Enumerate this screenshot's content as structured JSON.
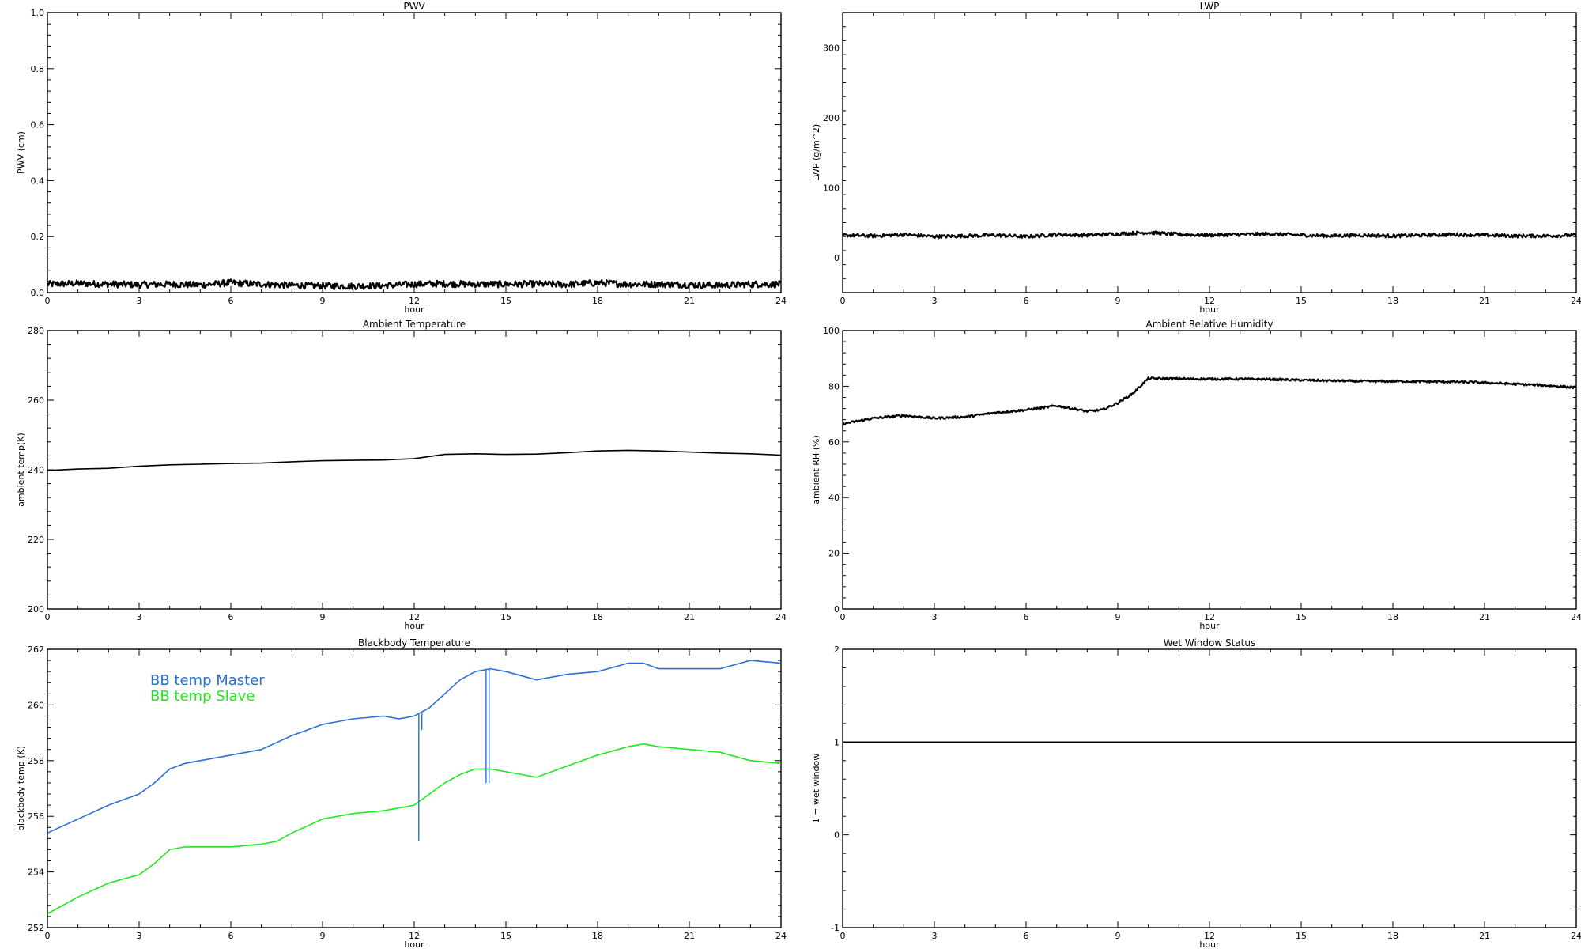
{
  "chart_data": [
    {
      "type": "line",
      "title": "PWV",
      "xlabel": "hour",
      "ylabel": "PWV (cm)",
      "xlim": [
        0,
        24
      ],
      "ylim": [
        0,
        1.0
      ],
      "xticks": [
        0,
        3,
        6,
        9,
        12,
        15,
        18,
        21,
        24
      ],
      "yticks": [
        0,
        0.2,
        0.4,
        0.6,
        0.8,
        1.0
      ],
      "ytick_labels": [
        "0.0",
        "0.2",
        "0.4",
        "0.6",
        "0.8",
        "1.0"
      ],
      "grid": false,
      "legend": [],
      "series": [
        {
          "color": "#000000",
          "noisy": true,
          "noise": 0.012,
          "x": [
            0,
            1,
            2,
            3,
            4,
            5,
            6,
            7,
            8,
            9,
            10,
            11,
            12,
            13,
            14,
            15,
            16,
            17,
            18,
            19,
            20,
            21,
            22,
            23,
            24
          ],
          "y": [
            0.03,
            0.033,
            0.03,
            0.028,
            0.03,
            0.027,
            0.035,
            0.03,
            0.026,
            0.024,
            0.023,
            0.025,
            0.03,
            0.032,
            0.03,
            0.03,
            0.031,
            0.029,
            0.035,
            0.03,
            0.03,
            0.028,
            0.026,
            0.03,
            0.03
          ]
        }
      ]
    },
    {
      "type": "line",
      "title": "LWP",
      "xlabel": "hour",
      "ylabel": "LWP (g/m^2)",
      "xlim": [
        0,
        24
      ],
      "ylim": [
        -50,
        350
      ],
      "xticks": [
        0,
        3,
        6,
        9,
        12,
        15,
        18,
        21,
        24
      ],
      "yticks": [
        0,
        100,
        200,
        300
      ],
      "ytick_labels": [
        "0",
        "100",
        "200",
        "300"
      ],
      "grid": false,
      "legend": [],
      "series": [
        {
          "color": "#000000",
          "noisy": true,
          "noise": 2.5,
          "x": [
            0,
            1,
            2,
            3,
            4,
            5,
            6,
            7,
            8,
            9,
            10,
            11,
            12,
            13,
            14,
            15,
            16,
            17,
            18,
            19,
            20,
            21,
            22,
            23,
            24
          ],
          "y": [
            32,
            31,
            33,
            30,
            31,
            32,
            30,
            33,
            32,
            34,
            36,
            33,
            32,
            33,
            34,
            32,
            31,
            32,
            31,
            32,
            33,
            32,
            31,
            31,
            32
          ]
        }
      ]
    },
    {
      "type": "line",
      "title": "Ambient Temperature",
      "xlabel": "hour",
      "ylabel": "ambient temp(K)",
      "xlim": [
        0,
        24
      ],
      "ylim": [
        200,
        280
      ],
      "xticks": [
        0,
        3,
        6,
        9,
        12,
        15,
        18,
        21,
        24
      ],
      "yticks": [
        200,
        220,
        240,
        260,
        280
      ],
      "ytick_labels": [
        "200",
        "220",
        "240",
        "260",
        "280"
      ],
      "grid": false,
      "legend": [],
      "series": [
        {
          "color": "#000000",
          "noisy": false,
          "x": [
            0,
            1,
            2,
            3,
            4,
            5,
            6,
            7,
            8,
            9,
            10,
            11,
            12,
            13,
            14,
            15,
            16,
            17,
            18,
            19,
            20,
            21,
            22,
            23,
            24
          ],
          "y": [
            239.8,
            240.2,
            240.4,
            241.0,
            241.4,
            241.6,
            241.8,
            241.9,
            242.3,
            242.6,
            242.7,
            242.8,
            243.2,
            244.4,
            244.6,
            244.4,
            244.5,
            244.9,
            245.4,
            245.6,
            245.4,
            245.1,
            244.8,
            244.6,
            244.2
          ]
        }
      ]
    },
    {
      "type": "line",
      "title": "Ambient Relative Humidity",
      "xlabel": "hour",
      "ylabel": "ambient RH (%)",
      "xlim": [
        0,
        24
      ],
      "ylim": [
        0,
        100
      ],
      "xticks": [
        0,
        3,
        6,
        9,
        12,
        15,
        18,
        21,
        24
      ],
      "yticks": [
        0,
        20,
        40,
        60,
        80,
        100
      ],
      "ytick_labels": [
        "0",
        "20",
        "40",
        "60",
        "80",
        "100"
      ],
      "grid": false,
      "legend": [],
      "series": [
        {
          "color": "#000000",
          "noisy": true,
          "noise": 0.4,
          "x": [
            0,
            1,
            2,
            3,
            4,
            5,
            6,
            7,
            8,
            8.5,
            9,
            9.5,
            10,
            11,
            12,
            13,
            14,
            15,
            16,
            17,
            18,
            19,
            20,
            21,
            22,
            23,
            24
          ],
          "y": [
            66.5,
            68.5,
            69.5,
            68.5,
            69.0,
            70.5,
            71.5,
            73.0,
            71.0,
            71.5,
            74.0,
            77.5,
            82.8,
            82.7,
            82.6,
            82.6,
            82.5,
            82.2,
            82.0,
            81.8,
            81.8,
            81.7,
            81.6,
            81.3,
            80.8,
            80.3,
            79.5
          ]
        }
      ]
    },
    {
      "type": "line",
      "title": "Blackbody Temperature",
      "xlabel": "hour",
      "ylabel": "blackbody temp (K)",
      "xlim": [
        0,
        24
      ],
      "ylim": [
        252,
        262
      ],
      "xticks": [
        0,
        3,
        6,
        9,
        12,
        15,
        18,
        21,
        24
      ],
      "yticks": [
        252,
        254,
        256,
        258,
        260,
        262
      ],
      "ytick_labels": [
        "252",
        "254",
        "256",
        "258",
        "260",
        "262"
      ],
      "grid": false,
      "legend": [
        "BB temp Master",
        "BB temp Slave"
      ],
      "series": [
        {
          "name": "BB temp Master",
          "color": "#2a6fd6",
          "noisy": false,
          "x": [
            0,
            1,
            2,
            3,
            3.5,
            4,
            4.5,
            5,
            6,
            7,
            8,
            9,
            10,
            11,
            11.5,
            12,
            12.5,
            13,
            13.5,
            14,
            14.5,
            15,
            16,
            17,
            18,
            19,
            19.5,
            20,
            21,
            22,
            23,
            24
          ],
          "y": [
            255.4,
            255.9,
            256.4,
            256.8,
            257.2,
            257.7,
            257.9,
            258.0,
            258.2,
            258.4,
            258.9,
            259.3,
            259.5,
            259.6,
            259.5,
            259.6,
            259.9,
            260.4,
            260.9,
            261.2,
            261.3,
            261.2,
            260.9,
            261.1,
            261.2,
            261.5,
            261.5,
            261.3,
            261.3,
            261.3,
            261.6,
            261.5
          ]
        },
        {
          "name": "BB temp Slave",
          "color": "#1ee81e",
          "noisy": false,
          "x": [
            0,
            1,
            2,
            3,
            3.5,
            4,
            4.5,
            5,
            6,
            7,
            7.5,
            8,
            9,
            10,
            11,
            12,
            12.5,
            13,
            13.5,
            14,
            14.5,
            15,
            16,
            17,
            18,
            19,
            19.5,
            20,
            21,
            22,
            23,
            24
          ],
          "y": [
            252.5,
            253.1,
            253.6,
            253.9,
            254.3,
            254.8,
            254.9,
            254.9,
            254.9,
            255.0,
            255.1,
            255.4,
            255.9,
            256.1,
            256.2,
            256.4,
            256.8,
            257.2,
            257.5,
            257.7,
            257.7,
            257.6,
            257.4,
            257.8,
            258.2,
            258.5,
            258.6,
            258.5,
            258.4,
            258.3,
            258.0,
            257.9
          ]
        }
      ],
      "spikes": [
        {
          "series": "BB temp Master",
          "x": 12.15,
          "y_low": 255.1,
          "y_high": 259.7
        },
        {
          "series": "BB temp Master",
          "x": 12.25,
          "y_low": 259.1,
          "y_high": 259.7
        },
        {
          "series": "BB temp Master",
          "x": 14.35,
          "y_low": 257.2,
          "y_high": 261.3
        },
        {
          "series": "BB temp Master",
          "x": 14.45,
          "y_low": 257.2,
          "y_high": 261.3
        }
      ]
    },
    {
      "type": "line",
      "title": "Wet Window Status",
      "xlabel": "hour",
      "ylabel": "1 = wet window",
      "xlim": [
        0,
        24
      ],
      "ylim": [
        -1,
        2
      ],
      "xticks": [
        0,
        3,
        6,
        9,
        12,
        15,
        18,
        21,
        24
      ],
      "yticks": [
        -1,
        0,
        1,
        2
      ],
      "ytick_labels": [
        "-1",
        "0",
        "1",
        "2"
      ],
      "grid": false,
      "legend": [],
      "series": [
        {
          "color": "#000000",
          "noisy": false,
          "x": [
            0,
            24
          ],
          "y": [
            1,
            1
          ]
        }
      ]
    }
  ]
}
